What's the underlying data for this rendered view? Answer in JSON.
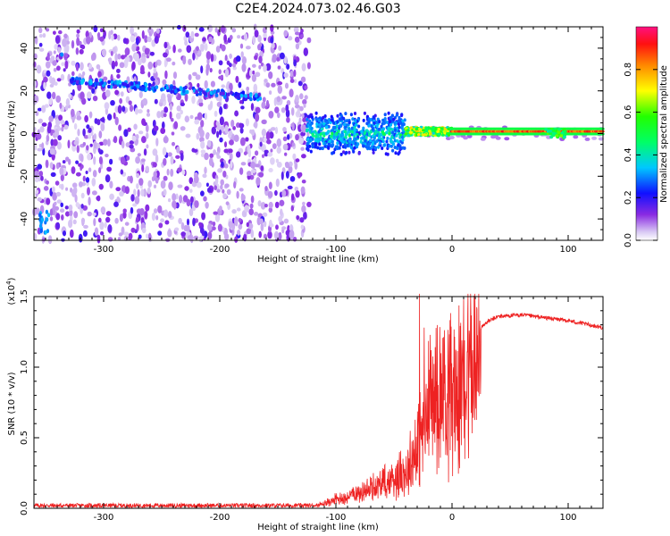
{
  "title": "C2E4.2024.073.02.46.G03",
  "chart_data": [
    {
      "type": "heatmap",
      "xlabel": "Height of straight line (km)",
      "ylabel": "Frequency (Hz)",
      "xlim": [
        -360,
        130
      ],
      "ylim": [
        -50,
        50
      ],
      "xticks": [
        -300,
        -200,
        -100,
        0,
        100
      ],
      "yticks": [
        -40,
        -20,
        0,
        20,
        40
      ],
      "colorbar": {
        "label": "Normalized spectral amplitude",
        "range": [
          0.0,
          1.0
        ],
        "ticks": [
          0.0,
          0.2,
          0.4,
          0.6,
          0.8
        ],
        "colormap": "rainbow (violet-blue-cyan-green-yellow-red-magenta)"
      },
      "features": [
        {
          "x_range": [
            -360,
            -123
          ],
          "y_range": [
            -50,
            50
          ],
          "level": 0.05
        },
        {
          "x_range": [
            -330,
            -165
          ],
          "y_center_start": 25,
          "y_center_end": 17,
          "level": 0.25
        },
        {
          "x_range": [
            -125,
            -40
          ],
          "y_center": 0,
          "y_spread": 7,
          "level": 0.3
        },
        {
          "x_range": [
            -40,
            0
          ],
          "y_center": 1,
          "y_spread": 2,
          "level": 0.6
        },
        {
          "x_range": [
            0,
            130
          ],
          "y_center": 1,
          "y_spread": 1,
          "level": 0.85
        }
      ]
    },
    {
      "type": "line",
      "xlabel": "Height of straight line (km)",
      "ylabel": "SNR (10 * v/v)",
      "yscale_label": "(x10",
      "yscale_exp": "4",
      "yscale_close": ")",
      "xlim": [
        -360,
        130
      ],
      "ylim": [
        0.0,
        1.5
      ],
      "xticks": [
        -300,
        -200,
        -100,
        0,
        100
      ],
      "yticks": [
        0.0,
        0.5,
        1.0,
        1.5
      ],
      "ytick_labels": [
        "0.0",
        "0.5",
        "1.0",
        "1.5"
      ],
      "series_color": "#ee2222",
      "x": [
        -360,
        -300,
        -200,
        -120,
        -110,
        -100,
        -90,
        -80,
        -70,
        -60,
        -50,
        -40,
        -35,
        -30,
        -25,
        -20,
        -15,
        -10,
        -5,
        0,
        5,
        10,
        15,
        20,
        25,
        30,
        40,
        60,
        80,
        100,
        130
      ],
      "y": [
        0.02,
        0.02,
        0.02,
        0.02,
        0.04,
        0.08,
        0.1,
        0.14,
        0.17,
        0.21,
        0.26,
        0.32,
        0.42,
        0.55,
        0.72,
        0.85,
        0.95,
        1.05,
        1.05,
        1.0,
        1.06,
        1.14,
        1.18,
        1.22,
        1.28,
        1.32,
        1.36,
        1.37,
        1.35,
        1.33,
        1.28
      ],
      "spikes": [
        {
          "x": -28,
          "y": 1.52
        },
        {
          "x": -24,
          "y": 1.28
        },
        {
          "x": -18,
          "y": 1.12
        },
        {
          "x": 10,
          "y": 1.48
        },
        {
          "x": 11,
          "y": 0.35
        }
      ]
    }
  ]
}
